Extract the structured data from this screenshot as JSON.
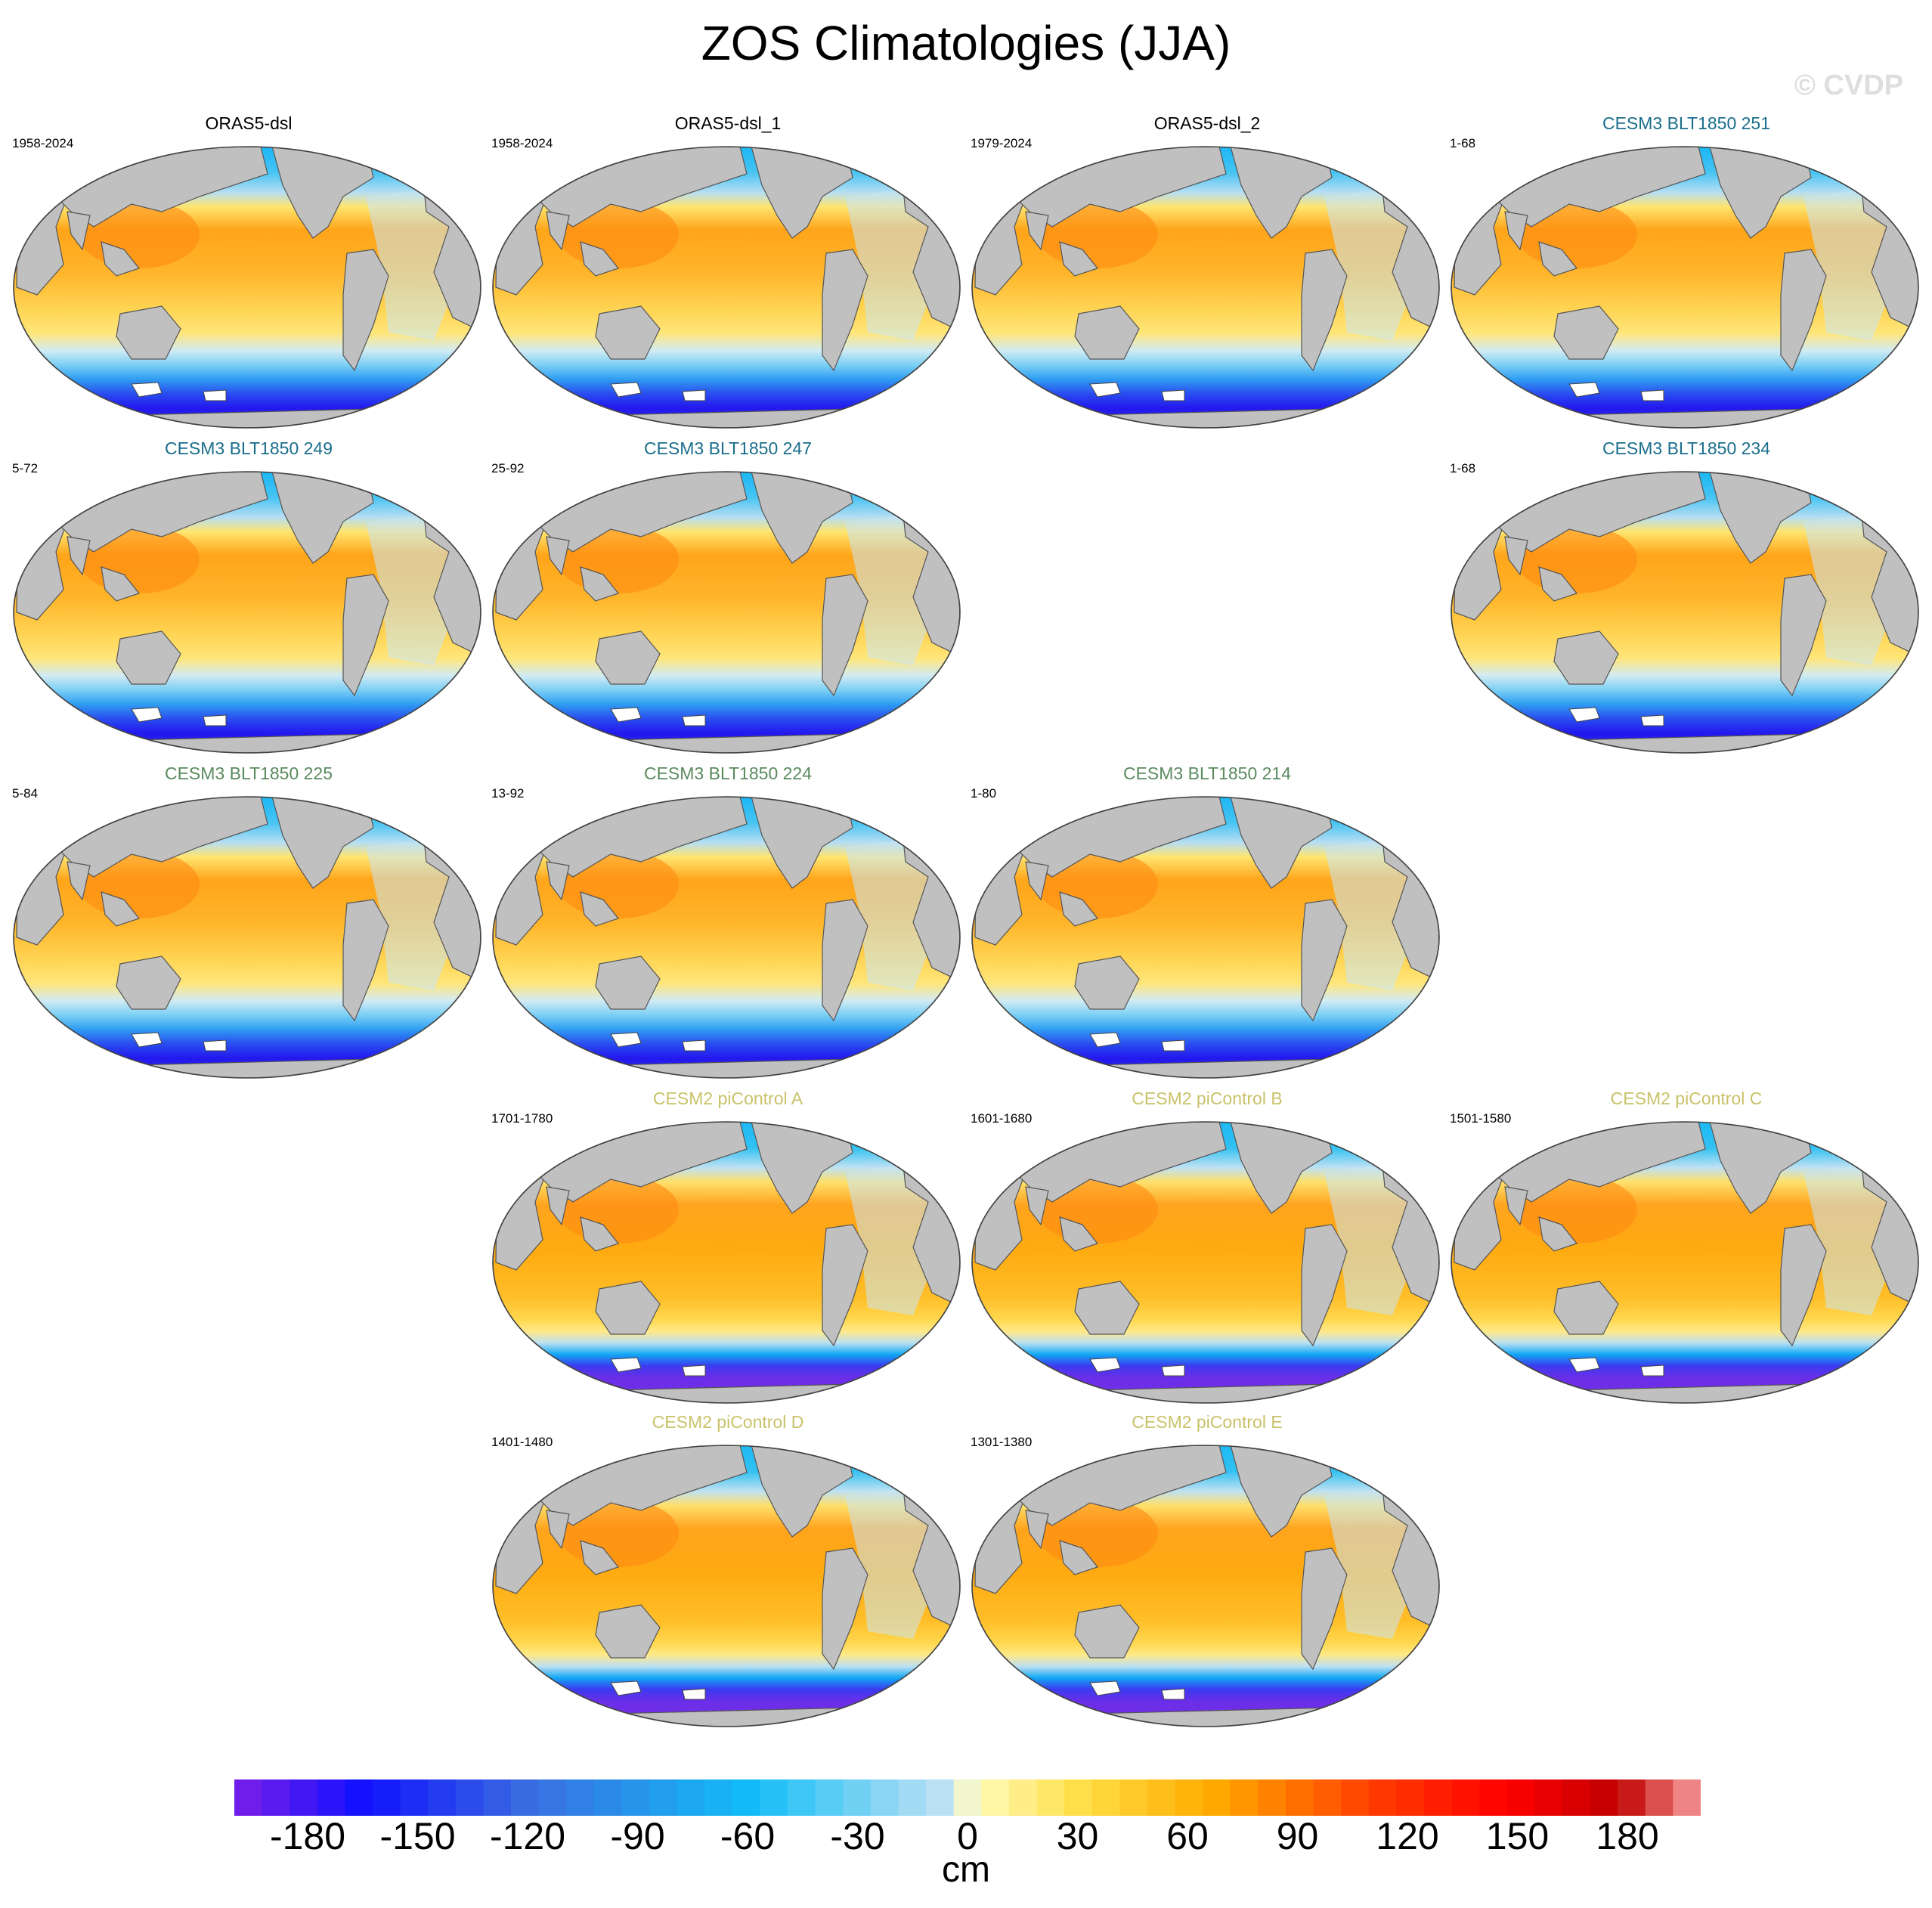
{
  "title": "ZOS Climatologies (JJA)",
  "watermark": "© CVDP",
  "colors": {
    "obs_title": "#000000",
    "cesm3_251_title": "#1a6e8c",
    "cesm3_225_title": "#5a8a5e",
    "cesm2_title": "#c9c26a",
    "land": "#c0c0c0"
  },
  "panels": [
    {
      "title": "ORAS5-dsl",
      "years": "1958-2024",
      "row": 0,
      "col": 0,
      "group": "obs",
      "variant": "obs"
    },
    {
      "title": "ORAS5-dsl_1",
      "years": "1958-2024",
      "row": 0,
      "col": 1,
      "group": "obs",
      "variant": "obs"
    },
    {
      "title": "ORAS5-dsl_2",
      "years": "1979-2024",
      "row": 0,
      "col": 2,
      "group": "obs",
      "variant": "obs"
    },
    {
      "title": "CESM3 BLT1850 251",
      "years": "1-68",
      "row": 0,
      "col": 3,
      "group": "cesm3a",
      "variant": "cesm3"
    },
    {
      "title": "CESM3 BLT1850 249",
      "years": "5-72",
      "row": 1,
      "col": 0,
      "group": "cesm3a",
      "variant": "cesm3"
    },
    {
      "title": "CESM3 BLT1850 247",
      "years": "25-92",
      "row": 1,
      "col": 1,
      "group": "cesm3a",
      "variant": "cesm3"
    },
    {
      "title": "CESM3 BLT1850 234",
      "years": "1-68",
      "row": 1,
      "col": 3,
      "group": "cesm3a",
      "variant": "cesm3"
    },
    {
      "title": "CESM3 BLT1850 225",
      "years": "5-84",
      "row": 2,
      "col": 0,
      "group": "cesm3b",
      "variant": "cesm3"
    },
    {
      "title": "CESM3 BLT1850 224",
      "years": "13-92",
      "row": 2,
      "col": 1,
      "group": "cesm3b",
      "variant": "cesm3"
    },
    {
      "title": "CESM3 BLT1850 214",
      "years": "1-80",
      "row": 2,
      "col": 2,
      "group": "cesm3b",
      "variant": "cesm3"
    },
    {
      "title": "CESM2 piControl A",
      "years": "1701-1780",
      "row": 3,
      "col": 1,
      "group": "cesm2",
      "variant": "cesm2"
    },
    {
      "title": "CESM2 piControl B",
      "years": "1601-1680",
      "row": 3,
      "col": 2,
      "group": "cesm2",
      "variant": "cesm2"
    },
    {
      "title": "CESM2 piControl C",
      "years": "1501-1580",
      "row": 3,
      "col": 3,
      "group": "cesm2",
      "variant": "cesm2"
    },
    {
      "title": "CESM2 piControl D",
      "years": "1401-1480",
      "row": 4,
      "col": 1,
      "group": "cesm2",
      "variant": "cesm2"
    },
    {
      "title": "CESM2 piControl E",
      "years": "1301-1380",
      "row": 4,
      "col": 2,
      "group": "cesm2",
      "variant": "cesm2"
    }
  ],
  "colorbar": {
    "units": "cm",
    "min": -200,
    "max": 200,
    "step": 7.5,
    "ticks": [
      "-180",
      "-150",
      "-120",
      "-90",
      "-60",
      "-30",
      "0",
      "30",
      "60",
      "90",
      "120",
      "150",
      "180"
    ],
    "tick_values": [
      -180,
      -150,
      -120,
      -90,
      -60,
      -30,
      0,
      30,
      60,
      90,
      120,
      150,
      180
    ],
    "color_stops": [
      {
        "v": -200,
        "c": "#7a1fe8"
      },
      {
        "v": -165,
        "c": "#1010ff"
      },
      {
        "v": -120,
        "c": "#3a6ee0"
      },
      {
        "v": -60,
        "c": "#11bdf7"
      },
      {
        "v": -5,
        "c": "#c6e3f3"
      },
      {
        "v": 0,
        "c": "#fffcc0"
      },
      {
        "v": 30,
        "c": "#ffde44"
      },
      {
        "v": 65,
        "c": "#ffab00"
      },
      {
        "v": 110,
        "c": "#ff3a00"
      },
      {
        "v": 145,
        "c": "#ff0000"
      },
      {
        "v": 175,
        "c": "#c00000"
      },
      {
        "v": 200,
        "c": "#ffb0b0"
      }
    ]
  }
}
